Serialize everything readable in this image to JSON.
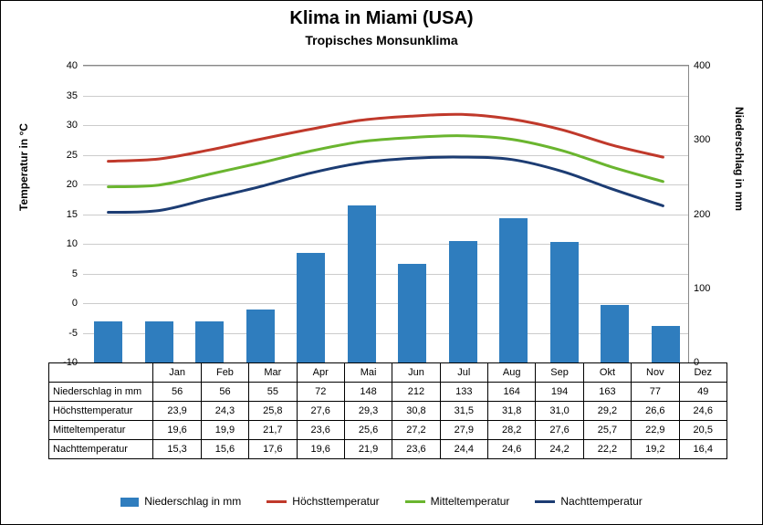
{
  "title": "Klima in Miami (USA)",
  "subtitle": "Tropisches Monsunklima",
  "months": [
    "Jan",
    "Feb",
    "Mar",
    "Apr",
    "Mai",
    "Jun",
    "Jul",
    "Aug",
    "Sep",
    "Okt",
    "Nov",
    "Dez"
  ],
  "left_axis": {
    "label": "Temperatur in °C",
    "min": -10,
    "max": 40,
    "step": 5,
    "fontsize": 12
  },
  "right_axis": {
    "label": "Niederschlag in mm",
    "min": 0,
    "max": 400,
    "step": 100,
    "fontsize": 12
  },
  "series": {
    "precip": {
      "label": "Niederschlag in mm",
      "type": "bar",
      "axis": "right",
      "color": "#2f7dbe",
      "bar_width": 0.55,
      "data": [
        56,
        56,
        55,
        72,
        148,
        212,
        133,
        164,
        194,
        163,
        77,
        49
      ],
      "display": [
        "56",
        "56",
        "55",
        "72",
        "148",
        "212",
        "133",
        "164",
        "194",
        "163",
        "77",
        "49"
      ]
    },
    "max_temp": {
      "label": "Höchsttemperatur",
      "type": "line",
      "axis": "left",
      "color": "#c0392b",
      "line_width": 3,
      "data": [
        23.9,
        24.3,
        25.8,
        27.6,
        29.3,
        30.8,
        31.5,
        31.8,
        31.0,
        29.2,
        26.6,
        24.6
      ],
      "display": [
        "23,9",
        "24,3",
        "25,8",
        "27,6",
        "29,3",
        "30,8",
        "31,5",
        "31,8",
        "31,0",
        "29,2",
        "26,6",
        "24,6"
      ]
    },
    "mean_temp": {
      "label": "Mitteltemperatur",
      "type": "line",
      "axis": "left",
      "color": "#6ab52f",
      "line_width": 3,
      "data": [
        19.6,
        19.9,
        21.7,
        23.6,
        25.6,
        27.2,
        27.9,
        28.2,
        27.6,
        25.7,
        22.9,
        20.5
      ],
      "display": [
        "19,6",
        "19,9",
        "21,7",
        "23,6",
        "25,6",
        "27,2",
        "27,9",
        "28,2",
        "27,6",
        "25,7",
        "22,9",
        "20,5"
      ]
    },
    "night_temp": {
      "label": "Nachttemperatur",
      "type": "line",
      "axis": "left",
      "color": "#1c3c73",
      "line_width": 3,
      "data": [
        15.3,
        15.6,
        17.6,
        19.6,
        21.9,
        23.6,
        24.4,
        24.6,
        24.2,
        22.2,
        19.2,
        16.4
      ],
      "display": [
        "15,3",
        "15,6",
        "17,6",
        "19,6",
        "21,9",
        "23,6",
        "24,4",
        "24,6",
        "24,2",
        "22,2",
        "19,2",
        "16,4"
      ]
    }
  },
  "table_rows": [
    "precip",
    "max_temp",
    "mean_temp",
    "night_temp"
  ],
  "legend_order": [
    "precip",
    "max_temp",
    "mean_temp",
    "night_temp"
  ],
  "background_color": "#ffffff",
  "grid_color": "#cccccc",
  "title_fontsize": 20,
  "subtitle_fontsize": 14
}
